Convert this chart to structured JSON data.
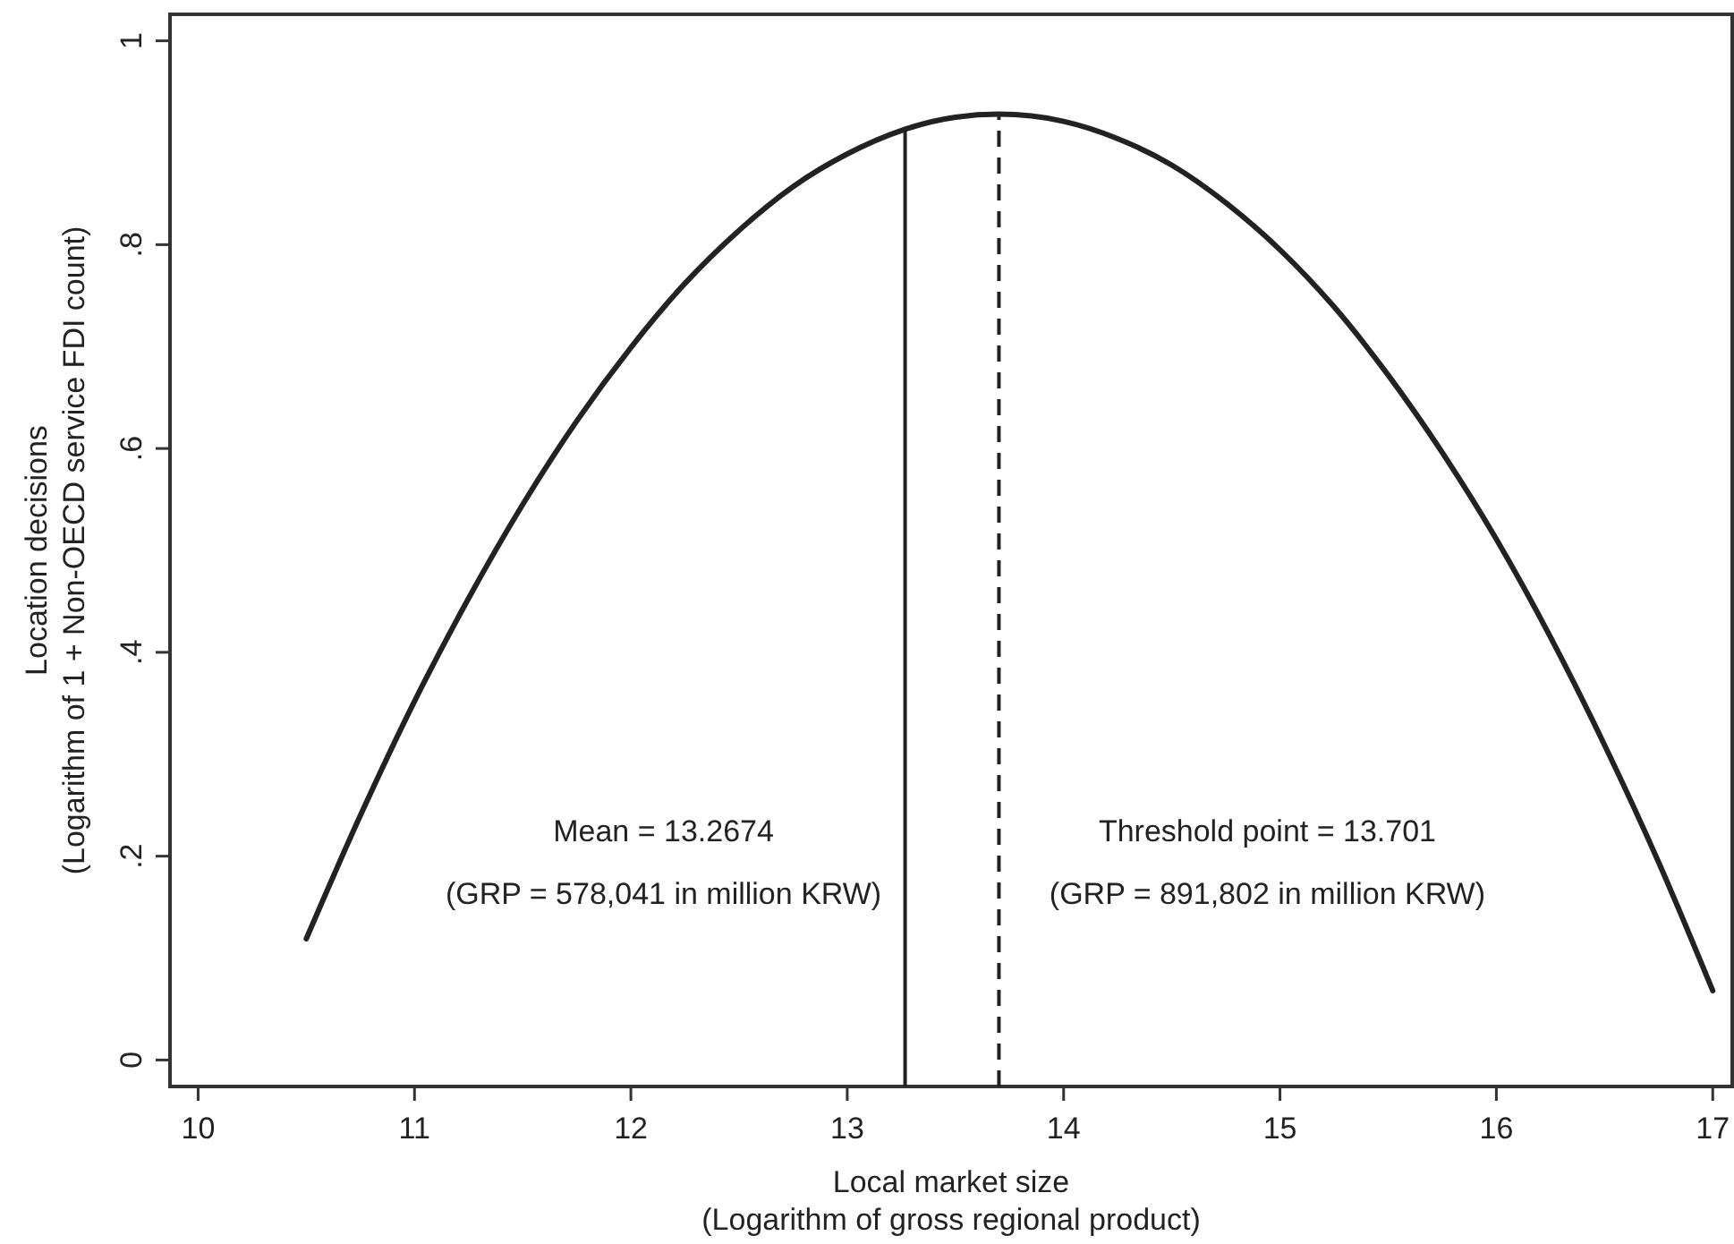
{
  "chart_data": {
    "type": "line",
    "xlabel": "Local market size\n(Logarithm of gross regional product)",
    "ylabel": "Location decisions\n(Logarithm of 1 + Non-OECD service FDI count)",
    "x": [
      10.5,
      10.75,
      11,
      11.25,
      11.5,
      11.75,
      12,
      12.25,
      12.5,
      12.75,
      13,
      13.25,
      13.5,
      13.701,
      14,
      14.25,
      14.5,
      14.75,
      15,
      15.25,
      15.5,
      15.75,
      16,
      16.25,
      16.5,
      16.75,
      17
    ],
    "series": [
      {
        "color": "#222222",
        "values": [
          0.119,
          0.24,
          0.352,
          0.453,
          0.545,
          0.627,
          0.699,
          0.762,
          0.814,
          0.857,
          0.889,
          0.912,
          0.925,
          0.928,
          0.921,
          0.904,
          0.878,
          0.841,
          0.795,
          0.739,
          0.672,
          0.596,
          0.511,
          0.415,
          0.309,
          0.194,
          0.068
        ]
      }
    ],
    "xlim": [
      9.87,
      17.09
    ],
    "ylim": [
      -0.026,
      1.026
    ],
    "xticks": [
      10,
      11,
      12,
      13,
      14,
      15,
      16,
      17
    ],
    "yticks": [
      0,
      {
        "value": 0.2,
        "label": ".2"
      },
      {
        "value": 0.4,
        "label": ".4"
      },
      {
        "value": 0.6,
        "label": ".6"
      },
      {
        "value": 0.8,
        "label": ".8"
      },
      1
    ],
    "ref_lines": [
      {
        "axis": "x",
        "value": 13.2674,
        "label": "Mean = 13.2674\n(GRP = 578,041 in million KRW)",
        "line_style": "solid",
        "color": "#222222"
      },
      {
        "axis": "x",
        "value": 13.701,
        "label": "Threshold point = 13.701\n(GRP = 891,802 in million KRW)",
        "line_style": "dashed",
        "color": "#222222"
      }
    ],
    "marker": "none",
    "line_style": "solid"
  }
}
